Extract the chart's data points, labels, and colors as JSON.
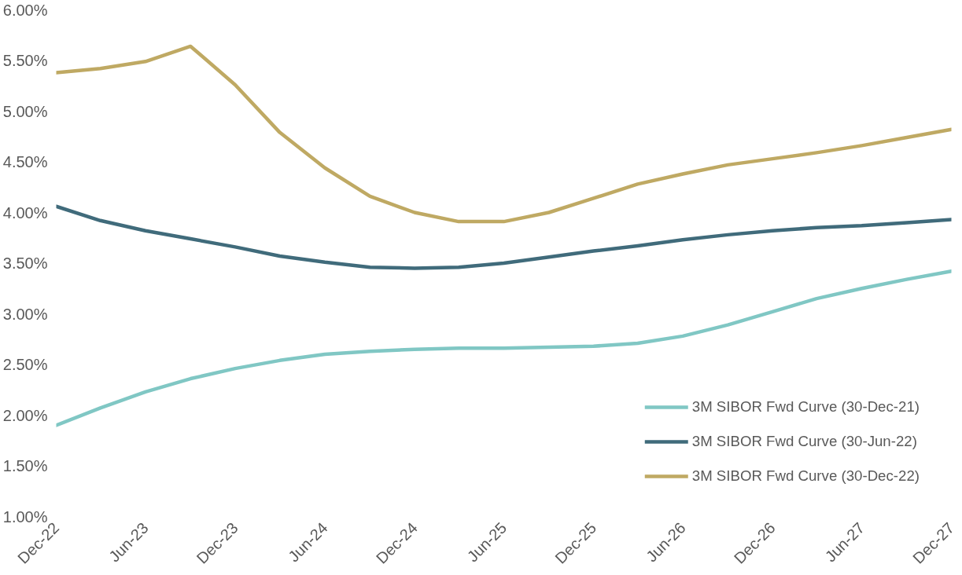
{
  "chart_data": {
    "type": "line",
    "x": [
      "2022-12",
      "2023-03",
      "2023-06",
      "2023-09",
      "2023-12",
      "2024-03",
      "2024-06",
      "2024-09",
      "2024-12",
      "2025-03",
      "2025-06",
      "2025-09",
      "2025-12",
      "2026-03",
      "2026-06",
      "2026-09",
      "2026-12",
      "2027-03",
      "2027-06",
      "2027-09",
      "2027-12"
    ],
    "series": [
      {
        "name": "3M SIBOR Fwd Curve (30-Dec-21)",
        "color": "#80c7c4",
        "values": [
          1.9,
          2.07,
          2.23,
          2.36,
          2.46,
          2.54,
          2.6,
          2.63,
          2.65,
          2.66,
          2.66,
          2.67,
          2.68,
          2.71,
          2.78,
          2.89,
          3.02,
          3.15,
          3.25,
          3.34,
          3.42
        ]
      },
      {
        "name": "3M SIBOR Fwd Curve (30-Jun-22)",
        "color": "#406b7b",
        "values": [
          4.06,
          3.92,
          3.82,
          3.74,
          3.66,
          3.57,
          3.51,
          3.46,
          3.45,
          3.46,
          3.5,
          3.56,
          3.62,
          3.67,
          3.73,
          3.78,
          3.82,
          3.85,
          3.87,
          3.9,
          3.93
        ]
      },
      {
        "name": "3M SIBOR Fwd Curve (30-Dec-22)",
        "color": "#bfa963",
        "values": [
          5.38,
          5.42,
          5.49,
          5.64,
          5.26,
          4.79,
          4.44,
          4.16,
          4.0,
          3.91,
          3.91,
          4.0,
          4.14,
          4.28,
          4.38,
          4.47,
          4.53,
          4.59,
          4.66,
          4.74,
          4.82
        ]
      }
    ],
    "xlim": [
      "2022-12",
      "2027-12"
    ],
    "xticks": [
      {
        "value": "2022-12",
        "label": "Dec-22"
      },
      {
        "value": "2023-06",
        "label": "Jun-23"
      },
      {
        "value": "2023-12",
        "label": "Dec-23"
      },
      {
        "value": "2024-06",
        "label": "Jun-24"
      },
      {
        "value": "2024-12",
        "label": "Dec-24"
      },
      {
        "value": "2025-06",
        "label": "Jun-25"
      },
      {
        "value": "2025-12",
        "label": "Dec-25"
      },
      {
        "value": "2026-06",
        "label": "Jun-26"
      },
      {
        "value": "2026-12",
        "label": "Dec-26"
      },
      {
        "value": "2027-06",
        "label": "Jun-27"
      },
      {
        "value": "2027-12",
        "label": "Dec-27"
      }
    ],
    "ylim": [
      1.0,
      6.0
    ],
    "yticks": [
      {
        "value": 1.0,
        "label": "1.00%"
      },
      {
        "value": 1.5,
        "label": "1.50%"
      },
      {
        "value": 2.0,
        "label": "2.00%"
      },
      {
        "value": 2.5,
        "label": "2.50%"
      },
      {
        "value": 3.0,
        "label": "3.00%"
      },
      {
        "value": 3.5,
        "label": "3.50%"
      },
      {
        "value": 4.0,
        "label": "4.00%"
      },
      {
        "value": 4.5,
        "label": "4.50%"
      },
      {
        "value": 5.0,
        "label": "5.00%"
      },
      {
        "value": 5.5,
        "label": "5.50%"
      },
      {
        "value": 6.0,
        "label": "6.00%"
      }
    ],
    "grid": false,
    "legend": "bottom right",
    "marker": "none",
    "line_style": "solid"
  }
}
